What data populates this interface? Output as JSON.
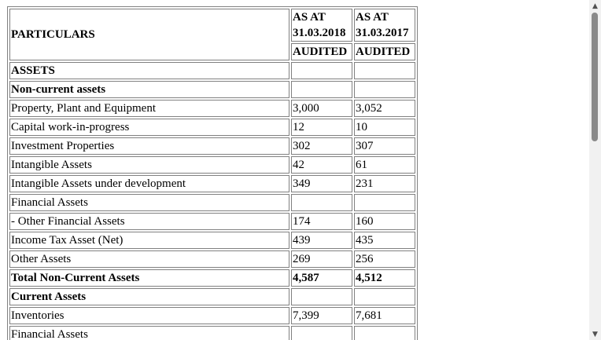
{
  "table": {
    "header": {
      "particulars": "PARTICULARS",
      "col1_line1": "AS AT",
      "col1_line2": "31.03.2018",
      "col2_line1": "AS AT",
      "col2_line2": "31.03.2017",
      "col1_status": "AUDITED",
      "col2_status": "AUDITED"
    },
    "rows": [
      {
        "label": "ASSETS",
        "v2018": "",
        "v2017": "",
        "bold": true
      },
      {
        "label": "Non-current assets",
        "v2018": "",
        "v2017": "",
        "bold": true
      },
      {
        "label": "Property, Plant and Equipment",
        "v2018": "3,000",
        "v2017": "3,052",
        "bold": false
      },
      {
        "label": "Capital work-in-progress",
        "v2018": "12",
        "v2017": "10",
        "bold": false
      },
      {
        "label": "Investment Properties",
        "v2018": "302",
        "v2017": "307",
        "bold": false
      },
      {
        "label": "Intangible Assets",
        "v2018": "42",
        "v2017": "61",
        "bold": false
      },
      {
        "label": "Intangible Assets under development",
        "v2018": "349",
        "v2017": "231",
        "bold": false
      },
      {
        "label": "Financial Assets",
        "v2018": "",
        "v2017": "",
        "bold": false
      },
      {
        "label": "- Other Financial Assets",
        "v2018": "174",
        "v2017": "160",
        "bold": false
      },
      {
        "label": "Income Tax Asset (Net)",
        "v2018": "439",
        "v2017": "435",
        "bold": false
      },
      {
        "label": "Other Assets",
        "v2018": "269",
        "v2017": "256",
        "bold": false
      },
      {
        "label": "Total Non-Current Assets",
        "v2018": "4,587",
        "v2017": "4,512",
        "bold": true
      },
      {
        "label": "Current Assets",
        "v2018": "",
        "v2017": "",
        "bold": true
      },
      {
        "label": "Inventories",
        "v2018": "7,399",
        "v2017": "7,681",
        "bold": false
      },
      {
        "label": "Financial Assets",
        "v2018": "",
        "v2017": "",
        "bold": false
      }
    ]
  },
  "scrollbar": {
    "up_icon": "▲",
    "down_icon": "▼"
  }
}
